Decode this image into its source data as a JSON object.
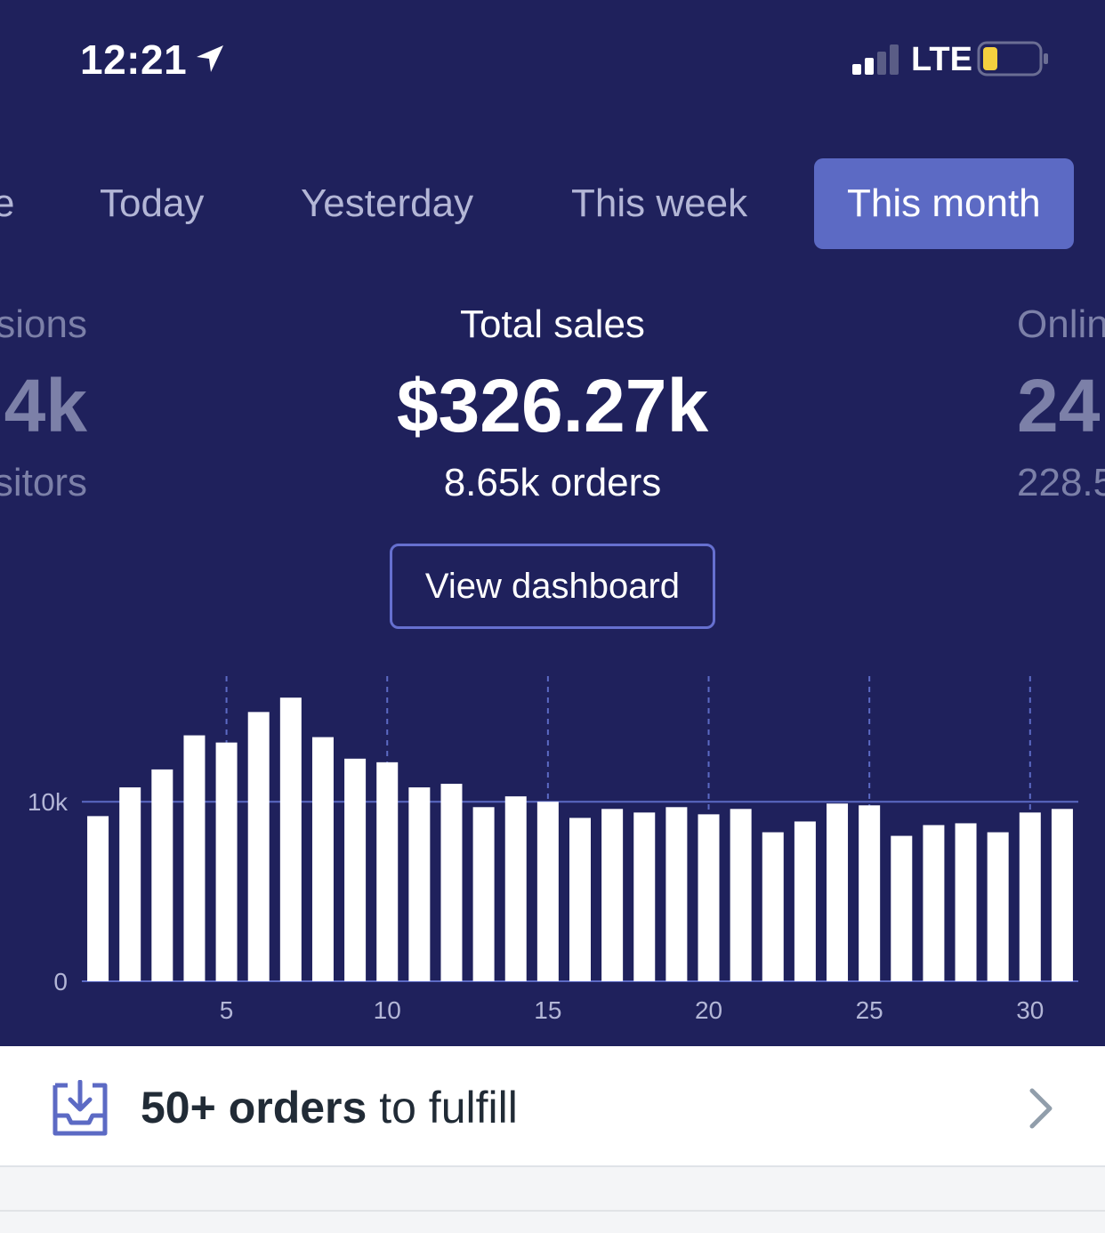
{
  "status_bar": {
    "time": "12:21",
    "network": "LTE",
    "icons": [
      "location-arrow-icon",
      "signal-bars-icon",
      "battery-low-icon"
    ],
    "battery_level": 0.15,
    "signal_bars_filled": 2,
    "signal_bars_total": 4
  },
  "tabs": [
    {
      "label": "e",
      "active": false
    },
    {
      "label": "Today",
      "active": false
    },
    {
      "label": "Yesterday",
      "active": false
    },
    {
      "label": "This week",
      "active": false
    },
    {
      "label": "This month",
      "active": true
    }
  ],
  "metrics": {
    "left": {
      "label": "sions",
      "value": "4k",
      "sub": "sitors"
    },
    "center": {
      "label": "Total sales",
      "value": "$326.27k",
      "sub": "8.65k orders"
    },
    "right": {
      "label": "Onlin",
      "value": "24",
      "sub": "228.5"
    }
  },
  "view_dashboard_label": "View dashboard",
  "chart_data": {
    "type": "bar",
    "x": [
      1,
      2,
      3,
      4,
      5,
      6,
      7,
      8,
      9,
      10,
      11,
      12,
      13,
      14,
      15,
      16,
      17,
      18,
      19,
      20,
      21,
      22,
      23,
      24,
      25,
      26,
      27,
      28,
      29,
      30,
      31
    ],
    "values": [
      9200,
      10800,
      11800,
      13700,
      13300,
      15000,
      15800,
      13600,
      12400,
      12200,
      10800,
      11000,
      9700,
      10300,
      10000,
      9100,
      9600,
      9400,
      9700,
      9300,
      9600,
      8300,
      8900,
      9900,
      9800,
      8100,
      8700,
      8800,
      8300,
      9400,
      9600
    ],
    "x_ticks": [
      "5",
      "10",
      "15",
      "20",
      "25",
      "30"
    ],
    "x_tick_values": [
      5,
      10,
      15,
      20,
      25,
      30
    ],
    "y_ticks": [
      "0",
      "10k"
    ],
    "y_tick_values": [
      0,
      10000
    ],
    "ylim": [
      0,
      17000
    ],
    "grid": "horizontal at 10k, vertical dashed at x ticks",
    "colors": {
      "bar": "#ffffff",
      "grid": "#5c6ac4",
      "background": "#1f215c",
      "tick_text": "#b3b6d6"
    }
  },
  "fulfill": {
    "bold": "50+ orders",
    "rest": " to fulfill",
    "icon": "inbox-download-icon",
    "chevron": "chevron-right-icon"
  },
  "colors": {
    "hero_bg": "#1f215c",
    "accent": "#5c6ac4",
    "battery_fill": "#f4d03f"
  }
}
